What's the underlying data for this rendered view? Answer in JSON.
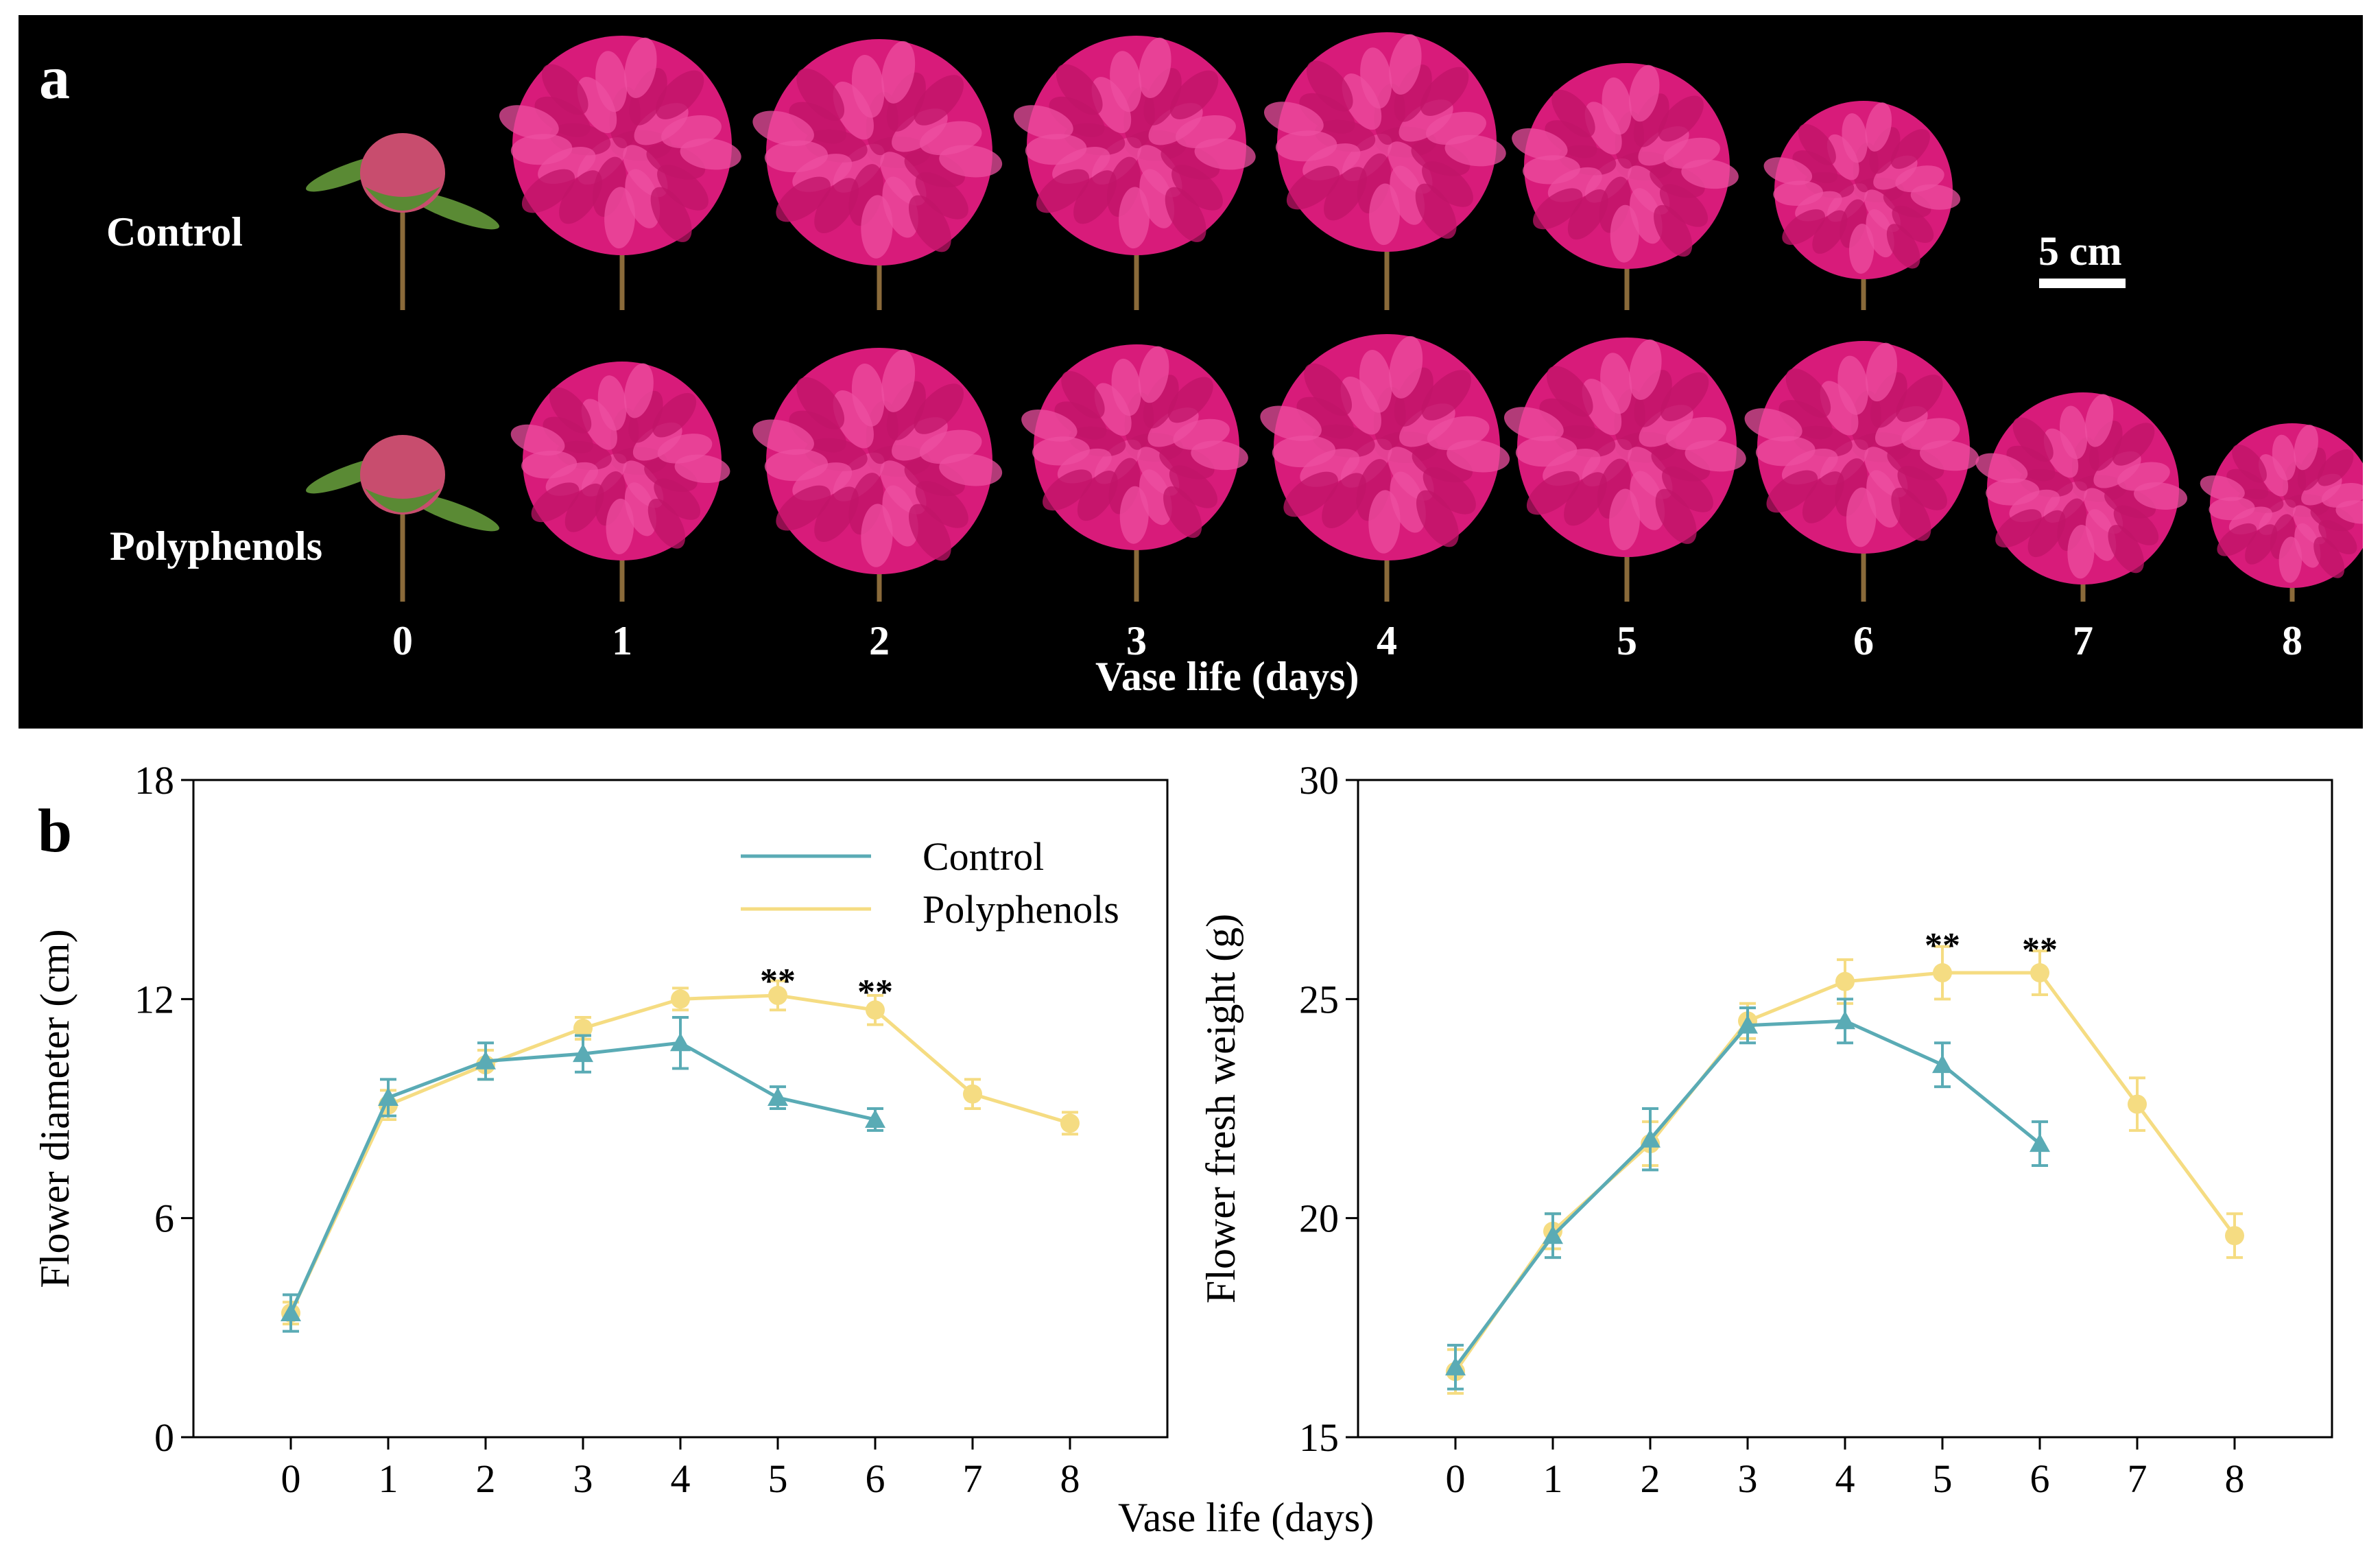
{
  "panel_a": {
    "letter": "a",
    "row_labels": [
      "Control",
      "Polyphenols"
    ],
    "scale_label": "5 cm",
    "days": [
      "0",
      "1",
      "2",
      "3",
      "4",
      "5",
      "6",
      "7",
      "8"
    ],
    "xlabel": "Vase life (days)",
    "flower_color": "#d81b7a",
    "bud_color": "#c84d6e",
    "leaf_color": "#5a8a34",
    "stem_color": "#8a6a3a"
  },
  "panel_b": {
    "letter": "b",
    "shared_xlabel": "Vase life (days)"
  },
  "chart_data": [
    {
      "type": "line",
      "title": "",
      "xlabel": "",
      "ylabel": "Flower diameter (cm)",
      "xlim": [
        -1,
        9
      ],
      "ylim": [
        0,
        18
      ],
      "xticks": [
        0,
        1,
        2,
        3,
        4,
        5,
        6,
        7,
        8
      ],
      "yticks": [
        0,
        6,
        12,
        18
      ],
      "grid": false,
      "legend": "top-right",
      "series": [
        {
          "name": "Control",
          "color": "#5aabb5",
          "marker": "triangle",
          "x": [
            0,
            1,
            2,
            3,
            4,
            5,
            6
          ],
          "y": [
            3.4,
            9.3,
            10.3,
            10.5,
            10.8,
            9.3,
            8.7
          ],
          "err": [
            0.5,
            0.5,
            0.5,
            0.5,
            0.7,
            0.3,
            0.3
          ]
        },
        {
          "name": "Polyphenols",
          "color": "#f5dc82",
          "marker": "circle",
          "x": [
            0,
            1,
            2,
            3,
            4,
            5,
            6,
            7,
            8
          ],
          "y": [
            3.4,
            9.1,
            10.2,
            11.2,
            12.0,
            12.1,
            11.7,
            9.4,
            8.6
          ],
          "err": [
            0.3,
            0.4,
            0.4,
            0.3,
            0.3,
            0.4,
            0.4,
            0.4,
            0.3
          ]
        }
      ],
      "annotations": [
        {
          "x": 5,
          "y": 12.7,
          "text": "**"
        },
        {
          "x": 6,
          "y": 12.4,
          "text": "**"
        }
      ]
    },
    {
      "type": "line",
      "title": "",
      "xlabel": "",
      "ylabel": "Flower fresh weight (g)",
      "xlim": [
        -1,
        9
      ],
      "ylim": [
        15,
        30
      ],
      "xticks": [
        0,
        1,
        2,
        3,
        4,
        5,
        6,
        7,
        8
      ],
      "yticks": [
        15,
        20,
        25,
        30
      ],
      "grid": false,
      "legend": "",
      "series": [
        {
          "name": "Control",
          "color": "#5aabb5",
          "marker": "triangle",
          "x": [
            0,
            1,
            2,
            3,
            4,
            5,
            6
          ],
          "y": [
            16.6,
            19.6,
            21.8,
            24.4,
            24.5,
            23.5,
            21.7
          ],
          "err": [
            0.5,
            0.5,
            0.7,
            0.4,
            0.5,
            0.5,
            0.5
          ]
        },
        {
          "name": "Polyphenols",
          "color": "#f5dc82",
          "marker": "circle",
          "x": [
            0,
            1,
            2,
            3,
            4,
            5,
            6,
            7,
            8
          ],
          "y": [
            16.5,
            19.7,
            21.7,
            24.5,
            25.4,
            25.6,
            25.6,
            22.6,
            19.6
          ],
          "err": [
            0.5,
            0.4,
            0.5,
            0.4,
            0.5,
            0.6,
            0.5,
            0.6,
            0.5
          ]
        }
      ],
      "annotations": [
        {
          "x": 5,
          "y": 26.4,
          "text": "**"
        },
        {
          "x": 6,
          "y": 26.3,
          "text": "**"
        }
      ]
    }
  ]
}
